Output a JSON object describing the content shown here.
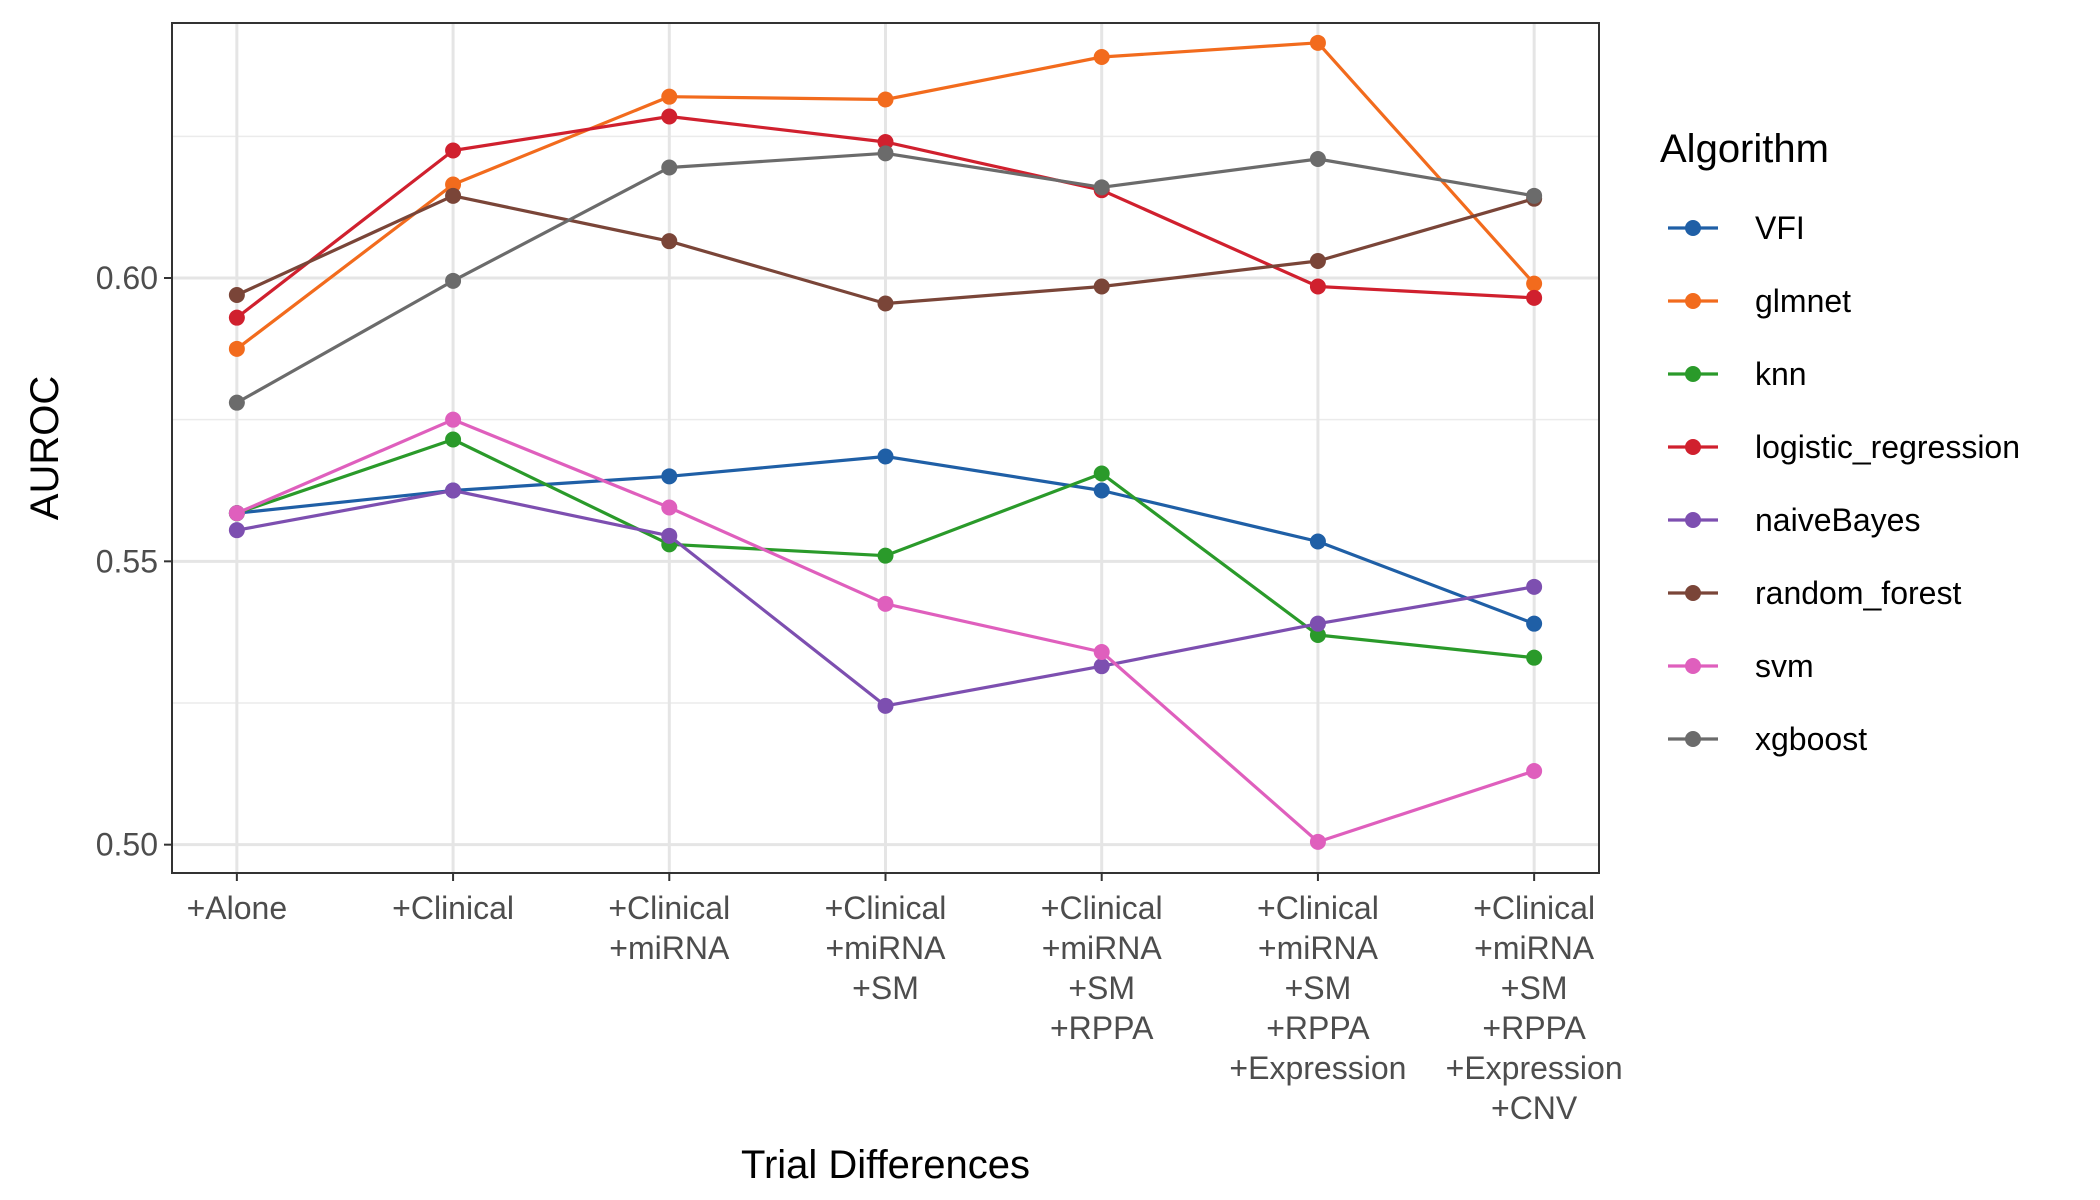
{
  "chart_data": {
    "type": "line",
    "xlabel": "Trial Differences",
    "ylabel": "AUROC",
    "ylim": [
      0.495,
      0.645
    ],
    "yticks": [
      "0.50",
      "0.55",
      "0.60"
    ],
    "grid": true,
    "legend_title": "Algorithm",
    "legend_position": "right",
    "categories": [
      [
        "+Alone"
      ],
      [
        "+Clinical"
      ],
      [
        "+Clinical",
        "+miRNA"
      ],
      [
        "+Clinical",
        "+miRNA",
        "+SM"
      ],
      [
        "+Clinical",
        "+miRNA",
        "+SM",
        "+RPPA"
      ],
      [
        "+Clinical",
        "+miRNA",
        "+SM",
        "+RPPA",
        "+Expression"
      ],
      [
        "+Clinical",
        "+miRNA",
        "+SM",
        "+RPPA",
        "+Expression",
        "+CNV"
      ]
    ],
    "series": [
      {
        "name": "VFI",
        "color": "#1f5fa6",
        "values": [
          0.5585,
          0.5625,
          0.565,
          0.5685,
          0.5625,
          0.5535,
          0.539
        ]
      },
      {
        "name": "glmnet",
        "color": "#f26b1d",
        "values": [
          0.5875,
          0.6165,
          0.632,
          0.6315,
          0.639,
          0.6415,
          0.599
        ]
      },
      {
        "name": "knn",
        "color": "#2a9a2a",
        "values": [
          0.5585,
          0.5715,
          0.553,
          0.551,
          0.5655,
          0.537,
          0.533
        ]
      },
      {
        "name": "logistic_regression",
        "color": "#d0202e",
        "values": [
          0.593,
          0.6225,
          0.6285,
          0.624,
          0.6155,
          0.5985,
          0.5965
        ]
      },
      {
        "name": "naiveBayes",
        "color": "#7d4fb0",
        "values": [
          0.5555,
          0.5625,
          0.5545,
          0.5245,
          0.5315,
          0.539,
          0.5455
        ]
      },
      {
        "name": "random_forest",
        "color": "#7a4538",
        "values": [
          0.597,
          0.6145,
          0.6065,
          0.5955,
          0.5985,
          0.603,
          0.614
        ]
      },
      {
        "name": "svm",
        "color": "#df5fbd",
        "values": [
          0.5585,
          0.575,
          0.5595,
          0.5425,
          0.534,
          0.5005,
          0.513
        ]
      },
      {
        "name": "xgboost",
        "color": "#6b6b6b",
        "values": [
          0.578,
          0.5995,
          0.6195,
          0.622,
          0.616,
          0.621,
          0.6145
        ]
      }
    ]
  }
}
